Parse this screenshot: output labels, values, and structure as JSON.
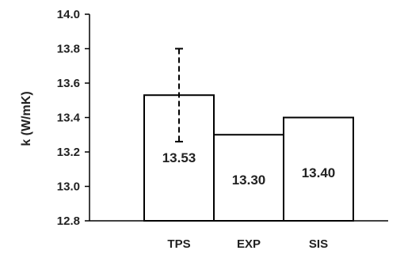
{
  "chart_data": {
    "type": "bar",
    "title": "",
    "xlabel": "",
    "ylabel": "k (W/mK)",
    "ylim": [
      12.8,
      14.0
    ],
    "yticks": [
      "12.8",
      "13.0",
      "13.2",
      "13.4",
      "13.6",
      "13.8",
      "14.0"
    ],
    "categories": [
      "TPS",
      "EXP",
      "SIS"
    ],
    "values": [
      13.53,
      13.3,
      13.4
    ],
    "data_labels": [
      "13.53",
      "13.30",
      "13.40"
    ],
    "error_bars": [
      {
        "category": "TPS",
        "low": 13.26,
        "high": 13.8
      },
      null,
      null
    ],
    "grid": false,
    "legend": "none"
  }
}
